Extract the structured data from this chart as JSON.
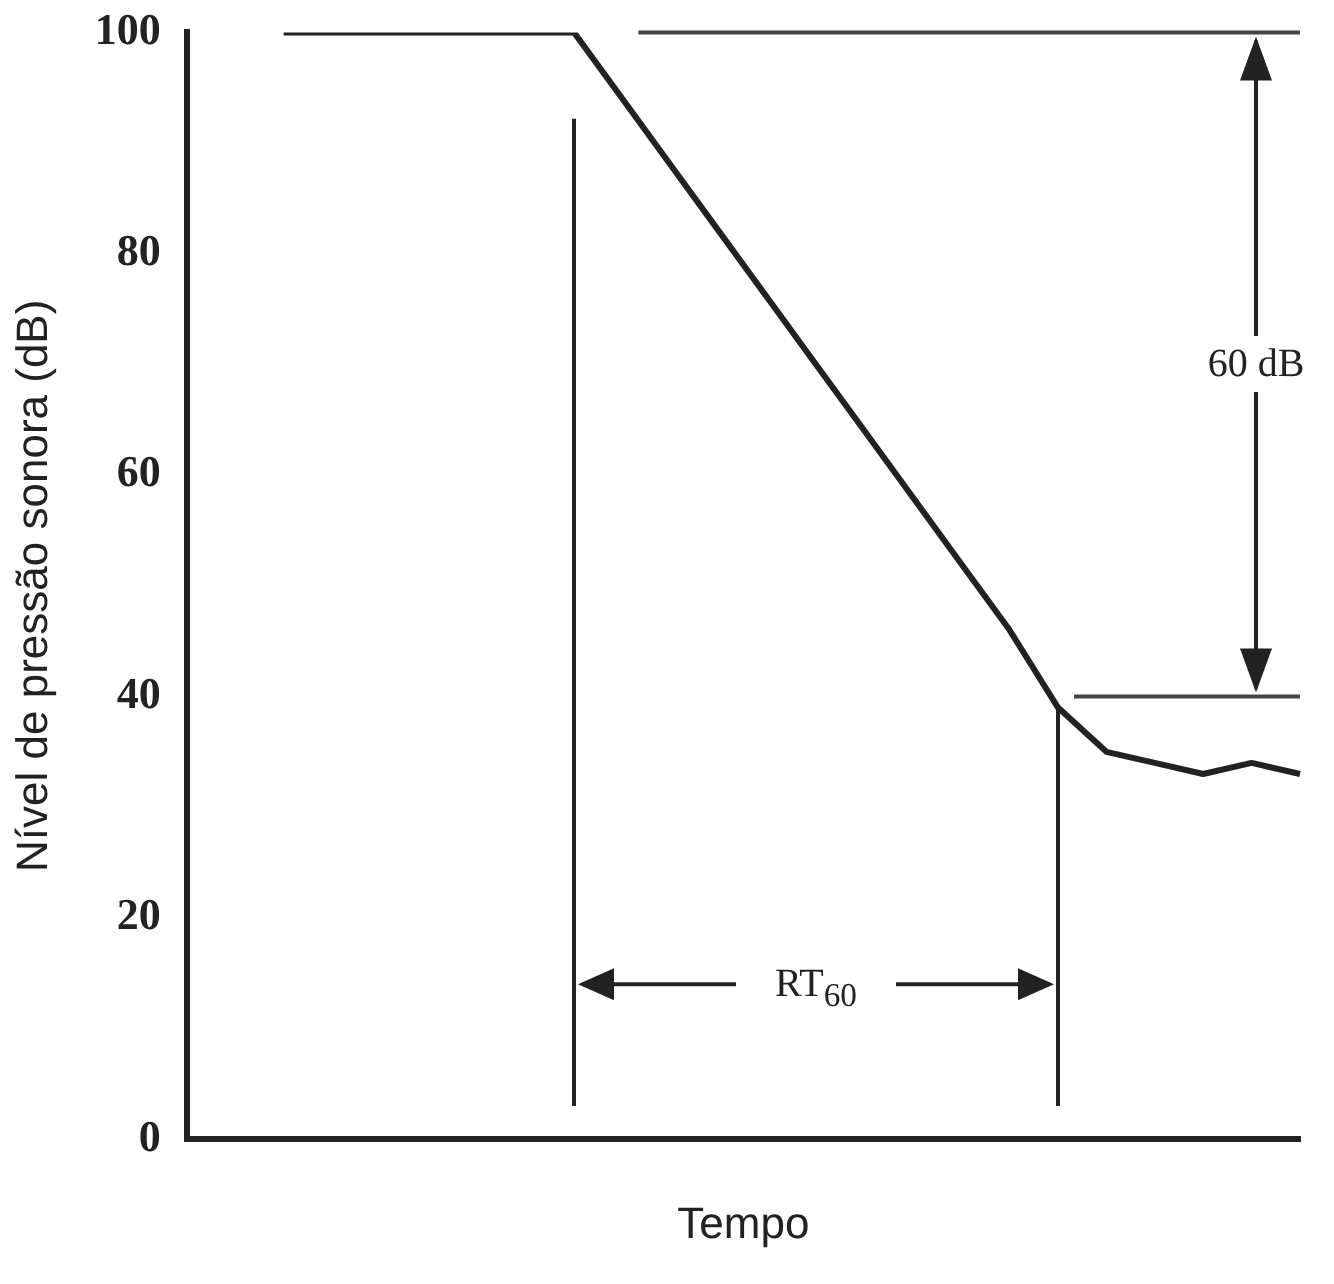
{
  "chart_data": {
    "type": "line",
    "xlabel": "Tempo",
    "ylabel": "Nível de pressão sonora (dB)",
    "categories": [
      null,
      null,
      null,
      null,
      null,
      null,
      null,
      null,
      null,
      null,
      null,
      null,
      null,
      null,
      null,
      null,
      null,
      null,
      null,
      null,
      null,
      null,
      null,
      null
    ],
    "series": [
      {
        "color": "#222222",
        "values": [
          null,
          null,
          100,
          100,
          100,
          100,
          100,
          100,
          100,
          94,
          88,
          82,
          76,
          70,
          64,
          58,
          52,
          46,
          39,
          35,
          34,
          33,
          34,
          33
        ]
      }
    ],
    "ylim": [
      0,
      100
    ],
    "yticks": [
      0,
      20,
      40,
      60,
      80,
      100
    ],
    "ref_lines": [
      {
        "axis": "y",
        "value": 100,
        "color": "#444444"
      },
      {
        "axis": "y",
        "value": 40,
        "color": "#444444"
      }
    ],
    "annotations": [
      "60 dB",
      "RT$_{60}$"
    ],
    "tick_labels": "y",
    "grid": false,
    "legend": false,
    "marker": "none",
    "line_style": "solid"
  }
}
